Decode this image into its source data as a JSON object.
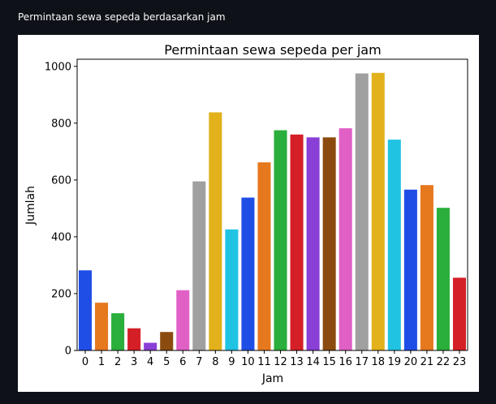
{
  "page": {
    "heading": "Permintaan sewa sepeda berdasarkan jam"
  },
  "chart_data": {
    "type": "bar",
    "title": "Permintaan sewa sepeda per jam",
    "xlabel": "Jam",
    "ylabel": "Jumlah",
    "categories": [
      "0",
      "1",
      "2",
      "3",
      "4",
      "5",
      "6",
      "7",
      "8",
      "9",
      "10",
      "11",
      "12",
      "13",
      "14",
      "15",
      "16",
      "17",
      "18",
      "19",
      "20",
      "21",
      "22",
      "23"
    ],
    "values": [
      282,
      168,
      131,
      78,
      27,
      65,
      212,
      595,
      838,
      426,
      538,
      662,
      775,
      760,
      750,
      750,
      782,
      975,
      977,
      742,
      566,
      582,
      502,
      256
    ],
    "colors": [
      "#1f4ee6",
      "#e6781e",
      "#2aae3c",
      "#d41f26",
      "#8a3fd6",
      "#8c4b0e",
      "#e060c6",
      "#a0a0a0",
      "#e2b11c",
      "#21c3e3",
      "#1f4ee6",
      "#e6781e",
      "#2aae3c",
      "#d41f26",
      "#8a3fd6",
      "#8c4b0e",
      "#e060c6",
      "#a0a0a0",
      "#e2b11c",
      "#21c3e3",
      "#1f4ee6",
      "#e6781e",
      "#2aae3c",
      "#d41f26"
    ],
    "ylim": [
      0,
      1025
    ],
    "yticks": [
      0,
      200,
      400,
      600,
      800,
      1000
    ],
    "grid": false,
    "legend": "none"
  }
}
